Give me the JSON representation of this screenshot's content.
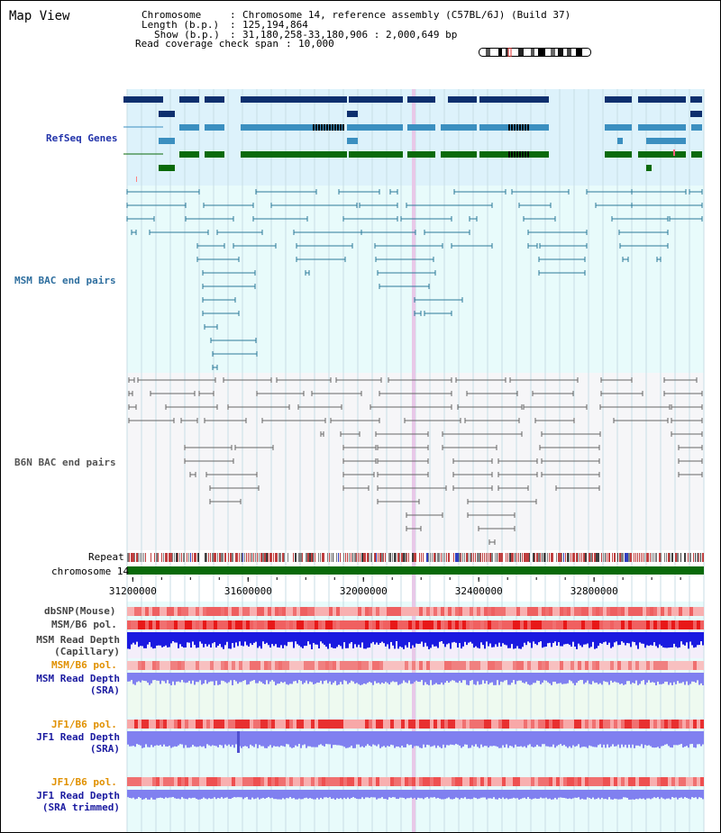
{
  "app": {
    "title": "Map View"
  },
  "header": {
    "chromosome_label": "Chromosome",
    "chromosome_value": "Chromosome 14, reference assembly (C57BL/6J) (Build 37)",
    "length_label": "Length (b.p.)",
    "length_value": "125,194,864",
    "show_label": "Show (b.p.)",
    "show_value": "31,180,258-33,180,906 : 2,000,649 bp",
    "read_label": "Read coverage check span",
    "read_value": "10,000"
  },
  "tracks": {
    "refseq": {
      "label": "RefSeq Genes",
      "color": "#1a3a7a"
    },
    "msm_bac": {
      "label": "MSM BAC end pairs",
      "color": "#2b7a9a"
    },
    "b6n_bac": {
      "label": "B6N BAC end pairs",
      "color": "#666666"
    },
    "repeat": {
      "label": "Repeat"
    },
    "chromosome": {
      "label": "chromosome 14",
      "color": "#0a6a0a"
    },
    "dbsnp": {
      "label": "dbSNP(Mouse)"
    },
    "msm_b6_pol_1": {
      "label": "MSM/B6 pol."
    },
    "msm_depth_cap": {
      "label": "MSM Read Depth\n(Capillary)"
    },
    "msm_b6_pol_2": {
      "label": "MSM/B6 pol."
    },
    "msm_depth_sra": {
      "label": "MSM Read Depth\n(SRA)"
    },
    "jf1_b6_pol_1": {
      "label": "JF1/B6 pol."
    },
    "jf1_depth_sra": {
      "label": "JF1 Read Depth\n(SRA)"
    },
    "jf1_b6_pol_2": {
      "label": "JF1/B6 pol."
    },
    "jf1_depth_trim": {
      "label": "JF1 Read Depth\n(SRA trimmed)"
    }
  },
  "axis": {
    "ticks": [
      "31200000",
      "31600000",
      "32000000",
      "32400000",
      "32800000"
    ],
    "tick_values": [
      31200000,
      31600000,
      32000000,
      32400000,
      32800000
    ],
    "start": 31180258,
    "end": 33180906
  },
  "colors": {
    "refseq_bg": "#ddf2fb",
    "msm_bg": "#e8fbfb",
    "b6n_bg": "#f6f6f8",
    "depth_bg": "#e8fbfb",
    "chrom_green": "#0a6a0a",
    "gene_dark": "#0d2f6e",
    "gene_light": "#3b8fc0",
    "gene_green": "#0a6a0a",
    "depth_blue": "#1a1ae0",
    "depth_lilac": "#8080f0",
    "pol_red": "#ee3333"
  }
}
